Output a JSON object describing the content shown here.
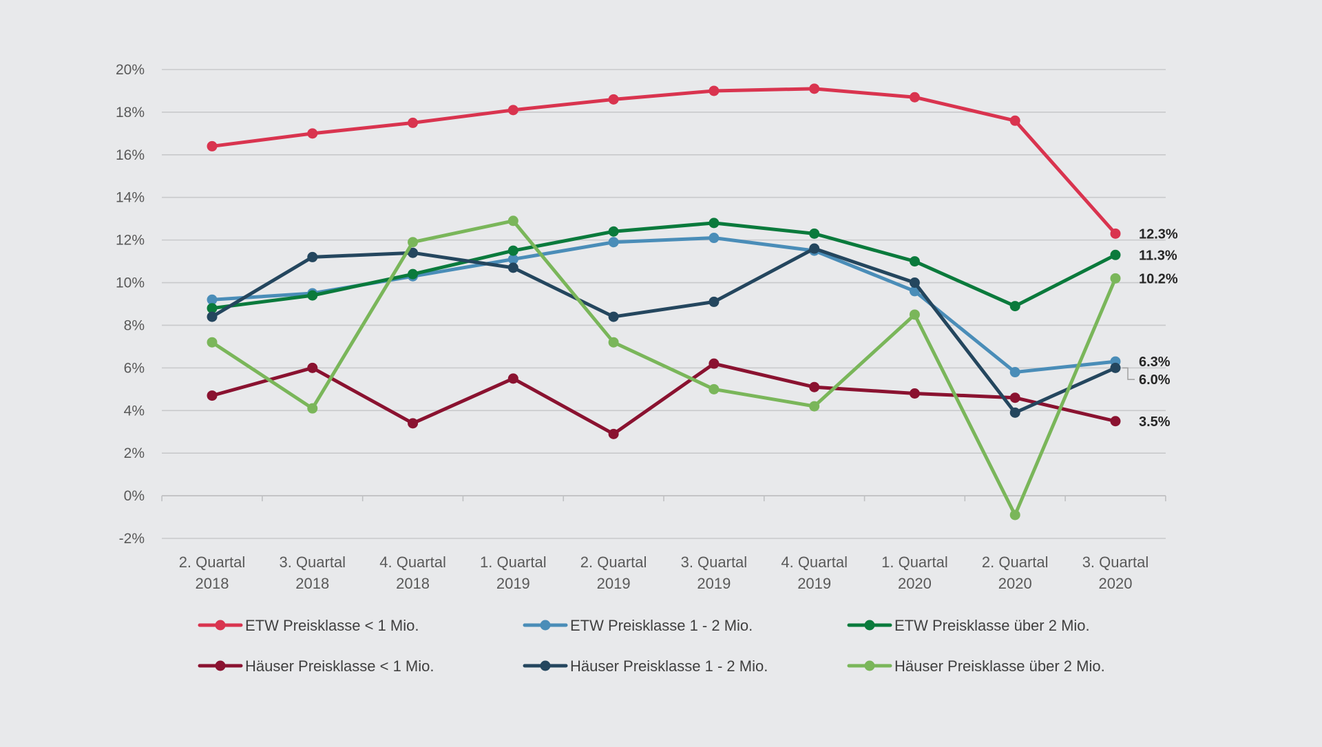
{
  "chart_data": {
    "type": "line",
    "title": "",
    "xlabel": "",
    "ylabel": "",
    "ylim": [
      -2,
      20
    ],
    "yticks": [
      -2,
      0,
      2,
      4,
      6,
      8,
      10,
      12,
      14,
      16,
      18,
      20
    ],
    "ytick_labels": [
      "-2%",
      "0%",
      "2%",
      "4%",
      "6%",
      "8%",
      "10%",
      "12%",
      "14%",
      "16%",
      "18%",
      "20%"
    ],
    "grid": true,
    "legend_position": "bottom",
    "categories": [
      [
        "2. Quartal",
        "2018"
      ],
      [
        "3. Quartal",
        "2018"
      ],
      [
        "4. Quartal",
        "2018"
      ],
      [
        "1. Quartal",
        "2019"
      ],
      [
        "2. Quartal",
        "2019"
      ],
      [
        "3. Quartal",
        "2019"
      ],
      [
        "4. Quartal",
        "2019"
      ],
      [
        "1. Quartal",
        "2020"
      ],
      [
        "2. Quartal",
        "2020"
      ],
      [
        "3. Quartal",
        "2020"
      ]
    ],
    "series": [
      {
        "name": "ETW Preisklasse < 1 Mio.",
        "color": "#d9344f",
        "values": [
          16.4,
          17.0,
          17.5,
          18.1,
          18.6,
          19.0,
          19.1,
          18.7,
          17.6,
          12.3
        ],
        "end_label": "12.3%"
      },
      {
        "name": "ETW Preisklasse 1 - 2 Mio.",
        "color": "#4a8db8",
        "values": [
          9.2,
          9.5,
          10.3,
          11.1,
          11.9,
          12.1,
          11.5,
          9.6,
          5.8,
          6.3
        ],
        "end_label": "6.3%"
      },
      {
        "name": "ETW Preisklasse über 2 Mio.",
        "color": "#0a7a3c",
        "values": [
          8.8,
          9.4,
          10.4,
          11.5,
          12.4,
          12.8,
          12.3,
          11.0,
          8.9,
          11.3
        ],
        "end_label": "11.3%"
      },
      {
        "name": "Häuser Preisklasse < 1 Mio.",
        "color": "#8a1230",
        "values": [
          4.7,
          6.0,
          3.4,
          5.5,
          2.9,
          6.2,
          5.1,
          4.8,
          4.6,
          3.5
        ],
        "end_label": "3.5%"
      },
      {
        "name": "Häuser Preisklasse 1 - 2 Mio.",
        "color": "#24465e",
        "values": [
          8.4,
          11.2,
          11.4,
          10.7,
          8.4,
          9.1,
          11.6,
          10.0,
          3.9,
          6.0
        ],
        "end_label": "6.0%"
      },
      {
        "name": "Häuser Preisklasse über 2 Mio.",
        "color": "#7ab65a",
        "values": [
          7.2,
          4.1,
          11.9,
          12.9,
          7.2,
          5.0,
          4.2,
          8.5,
          -0.9,
          10.2
        ],
        "end_label": "10.2%"
      }
    ]
  }
}
